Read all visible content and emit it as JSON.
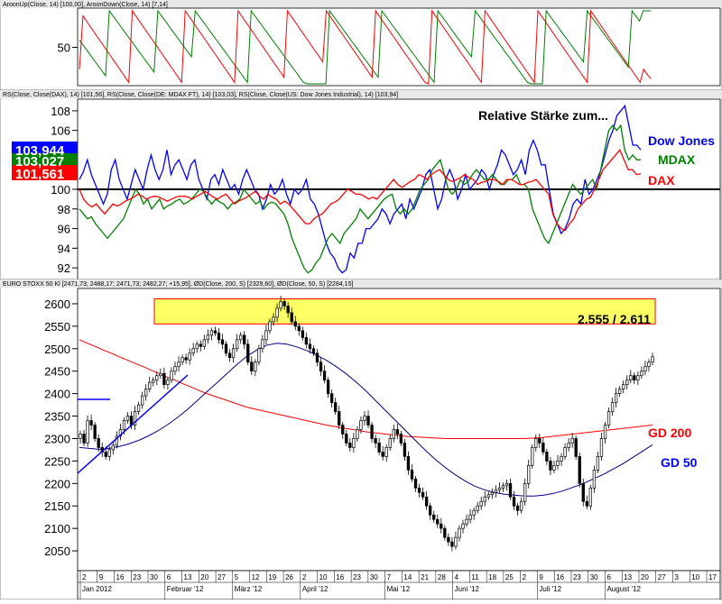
{
  "colors": {
    "up": "#008000",
    "down": "#ff0000",
    "dow": "#0000ff",
    "mdax": "#008000",
    "dax": "#ff0000",
    "gd200": "#ff0000",
    "gd50": "#00008b",
    "trend": "#0000ff",
    "zone_fill": "#ffff66",
    "zone_stroke": "#ff0000"
  },
  "chart_data": [
    {
      "type": "line",
      "header": "AroonUp(Close, 14) [100,00], AroonDown(Close, 14) [7,14]",
      "ylabels": [
        "50"
      ],
      "ylim": [
        0,
        100
      ],
      "series": [
        {
          "name": "AroonUp",
          "values": [
            60,
            53,
            46,
            39,
            32,
            25,
            18,
            11,
            100,
            93,
            86,
            79,
            72,
            65,
            58,
            51,
            44,
            37,
            30,
            23,
            16,
            100,
            93,
            86,
            79,
            72,
            65,
            58,
            51,
            44,
            37,
            100,
            93,
            86,
            79,
            72,
            65,
            58,
            51,
            44,
            37,
            30,
            23,
            16,
            9,
            2,
            100,
            93,
            86,
            79,
            72,
            65,
            58,
            51,
            44,
            37,
            30,
            23,
            16,
            9,
            2,
            0,
            0,
            0,
            0,
            0,
            0,
            100,
            93,
            86,
            79,
            72,
            65,
            58,
            51,
            44,
            37,
            30,
            23,
            16,
            9,
            100,
            93,
            86,
            79,
            72,
            65,
            58,
            51,
            44,
            37,
            30,
            23,
            16,
            9,
            2,
            100,
            93,
            86,
            79,
            72,
            65,
            58,
            51,
            44,
            37,
            100,
            93,
            86,
            79,
            72,
            65,
            58,
            51,
            44,
            37,
            30,
            23,
            16,
            9,
            2,
            0,
            0,
            0,
            0,
            100,
            93,
            86,
            79,
            72,
            65,
            58,
            51,
            44,
            37,
            30,
            100,
            93,
            86,
            79,
            72,
            65,
            58,
            51,
            44,
            37,
            30,
            23,
            100,
            93,
            86,
            100,
            100,
            100
          ]
        },
        {
          "name": "AroonDown",
          "values": [
            20,
            93,
            86,
            79,
            72,
            65,
            58,
            51,
            44,
            37,
            30,
            23,
            16,
            9,
            2,
            100,
            93,
            86,
            79,
            72,
            65,
            58,
            51,
            44,
            37,
            30,
            23,
            16,
            9,
            2,
            100,
            93,
            86,
            79,
            72,
            65,
            58,
            51,
            44,
            37,
            30,
            23,
            16,
            9,
            2,
            100,
            93,
            86,
            79,
            72,
            65,
            58,
            51,
            44,
            37,
            30,
            23,
            16,
            9,
            100,
            93,
            86,
            79,
            72,
            65,
            58,
            51,
            44,
            37,
            30,
            100,
            93,
            86,
            79,
            72,
            65,
            58,
            51,
            44,
            37,
            30,
            23,
            16,
            9,
            100,
            93,
            86,
            79,
            72,
            65,
            58,
            51,
            44,
            37,
            30,
            23,
            16,
            9,
            2,
            0,
            100,
            93,
            86,
            79,
            72,
            65,
            58,
            51,
            44,
            37,
            30,
            23,
            16,
            9,
            2,
            100,
            93,
            86,
            79,
            72,
            65,
            58,
            51,
            44,
            37,
            30,
            23,
            16,
            9,
            2,
            100,
            93,
            86,
            79,
            72,
            65,
            58,
            51,
            44,
            37,
            30,
            23,
            16,
            9,
            2,
            100,
            93,
            86,
            79,
            72,
            65,
            58,
            51,
            44,
            37,
            30,
            23,
            16,
            9,
            2,
            20,
            13,
            7
          ]
        }
      ]
    },
    {
      "type": "line",
      "header": "RS(Close, Close(DAX), 14) [101,56], RS(Close, Close(DE: MDAX       FT), 14) [103,03], RS(Close, Close(US: Dow Jones Industrial), 14) [103,94]",
      "title": "Relative Stärke zum...",
      "ylabels": [
        "108",
        "106",
        "104",
        "102",
        "100",
        "98",
        "96",
        "94",
        "92"
      ],
      "ylim": [
        91,
        109
      ],
      "reference": 100,
      "value_boxes": [
        "103,944",
        "103,027",
        "101,561"
      ],
      "series": [
        {
          "name": "Dow Jones",
          "color_key": "dow",
          "values": [
            101,
            101.8,
            103,
            101.5,
            100.5,
            99.5,
            98.5,
            99.5,
            102,
            103,
            101,
            100,
            99,
            100.5,
            102,
            101,
            100,
            102,
            103.5,
            102,
            101,
            102,
            104,
            101.5,
            102.5,
            103,
            102,
            101,
            102.5,
            103,
            101,
            100,
            99,
            101,
            101.5,
            100.5,
            102,
            101,
            100,
            100.5,
            99.5,
            101,
            102,
            101,
            100,
            99.5,
            98,
            99,
            100.5,
            99.5,
            100,
            101,
            99.5,
            98.5,
            100,
            99.5,
            100,
            101,
            99,
            98.5,
            97.5,
            96,
            94.5,
            93.5,
            93,
            92,
            91.5,
            91.8,
            93.5,
            93,
            94.5,
            94.5,
            96,
            96,
            96.5,
            97,
            98,
            97.5,
            96.5,
            97.5,
            98,
            98.5,
            97,
            99,
            98,
            99,
            100,
            101.5,
            102,
            100,
            98,
            99,
            101,
            102,
            101,
            99,
            100,
            101.5,
            100,
            100.5,
            101,
            102,
            101.5,
            100,
            101.5,
            102.5,
            104,
            103.5,
            102.5,
            101.5,
            102,
            103,
            101.5,
            104,
            105,
            104,
            102.5,
            102.5,
            100,
            97.5,
            96.5,
            95.5,
            96,
            97,
            98.5,
            99,
            98.5,
            101,
            99.5,
            100,
            101,
            102,
            103.5,
            105,
            106,
            107.5,
            108,
            108.5,
            106.5,
            104.5,
            104.5,
            104
          ]
        },
        {
          "name": "MDAX",
          "color_key": "mdax",
          "values": [
            98,
            97.5,
            97,
            97.2,
            96.5,
            96,
            95.5,
            95,
            95.5,
            96,
            96.5,
            97,
            98,
            99,
            100,
            99.5,
            98.5,
            99,
            98,
            98.5,
            99,
            98,
            98.3,
            98.5,
            98.8,
            99,
            98.5,
            98.7,
            99,
            99.5,
            100,
            99.8,
            99,
            98.5,
            99,
            98.7,
            98.5,
            98,
            98.5,
            98.7,
            99,
            100,
            99.5,
            99,
            98.5,
            98.8,
            98,
            98.5,
            98.7,
            98.5,
            98,
            97.5,
            96.5,
            95,
            94,
            93,
            92,
            91.5,
            91.8,
            92.5,
            93,
            94,
            95,
            95.5,
            95,
            94.5,
            95.5,
            96,
            96.5,
            97,
            98,
            97.5,
            97,
            97.5,
            98,
            98.5,
            99,
            99.3,
            99.5,
            98,
            97.5,
            98,
            97.5,
            98,
            99,
            100,
            100.5,
            101,
            102,
            102.5,
            103,
            101.5,
            100,
            99.5,
            100,
            101,
            100.5,
            100.8,
            101.5,
            102,
            101.5,
            101,
            101,
            101.5,
            101,
            100.5,
            100.5,
            101,
            101,
            101.5,
            100.5,
            100.5,
            100,
            98,
            97,
            96,
            95,
            94.5,
            95.5,
            96.5,
            97.5,
            98.5,
            99.5,
            100.5,
            100,
            99.5,
            100,
            100.5,
            101,
            100,
            102,
            104,
            106,
            106.5,
            106,
            106.5,
            104,
            103,
            103.5,
            103,
            103
          ]
        },
        {
          "name": "DAX",
          "color_key": "dax",
          "values": [
            100,
            99,
            98.5,
            98.2,
            98.5,
            98,
            97.5,
            98,
            98.5,
            98.3,
            98.5,
            98.8,
            99,
            99.2,
            99.5,
            99.3,
            99,
            99.2,
            99.3,
            99.2,
            99,
            98.8,
            99,
            99.2,
            99.3,
            99.3,
            99.2,
            99,
            99.3,
            99.5,
            99.8,
            99.5,
            99.2,
            99,
            99.3,
            99.5,
            99,
            98.5,
            98.8,
            99,
            99.2,
            99.5,
            99.8,
            99.3,
            99,
            99.5,
            99.2,
            99,
            98.5,
            98.8,
            98.5,
            98,
            97.5,
            97,
            96.5,
            96.5,
            97,
            97.3,
            97.5,
            98,
            98.5,
            98.7,
            99,
            99.5,
            100,
            99.8,
            99.5,
            99.5,
            99.3,
            99,
            99.2,
            99,
            99.5,
            100,
            100.5,
            101,
            100.5,
            100.2,
            100.5,
            100.8,
            101,
            101.5,
            101.3,
            101,
            101.5,
            101.8,
            102,
            101.5,
            101,
            100.8,
            101,
            101.2,
            101.5,
            101.2,
            101,
            100.5,
            100.7,
            100.8,
            101,
            101,
            100.8,
            100.5,
            101,
            101,
            100.8,
            100.5,
            100.5,
            100.7,
            100.8,
            101,
            100.5,
            100,
            99.5,
            97.5,
            96.5,
            96,
            95.8,
            96.5,
            97,
            98,
            98.5,
            99,
            99.2,
            100,
            101,
            102,
            102.5,
            103,
            103.5,
            104,
            103,
            102,
            102,
            101.5,
            101.6
          ]
        }
      ]
    },
    {
      "type": "candlestick",
      "header": "EURO STOXX 50     Kl [2471,73; 2488,17; 2471,73; 2482,27; +15,95], ØD(Close, 200, S) [2329,60], ØD(Close, 50, S) [2284,15]",
      "ylabels": [
        "2600",
        "2550",
        "2500",
        "2450",
        "2400",
        "2350",
        "2300",
        "2250",
        "2200",
        "2150",
        "2100",
        "2050"
      ],
      "ylim": [
        2010,
        2630
      ],
      "resistance_zone": {
        "from": 2555,
        "to": 2611,
        "label": "2.555 / 2.611"
      },
      "line_labels": {
        "gd200": "GD 200",
        "gd50": "GD 50"
      },
      "x_ticks": [
        "2",
        "9",
        "16",
        "23",
        "30",
        "6",
        "13",
        "20",
        "27",
        "5",
        "12",
        "19",
        "26",
        "2",
        "10",
        "16",
        "23",
        "30",
        "7",
        "14",
        "21",
        "28",
        "4",
        "11",
        "18",
        "25",
        "2",
        "9",
        "16",
        "23",
        "30",
        "6",
        "13",
        "20",
        "27",
        "3",
        "10",
        "17"
      ],
      "months": [
        "Jan 2012",
        "Februar '12",
        "März '12",
        "April '12",
        "Mai '12",
        "Juni '12",
        "Juli '12",
        "August '12"
      ],
      "close": [
        2310,
        2290,
        2340,
        2330,
        2300,
        2280,
        2270,
        2260,
        2275,
        2285,
        2305,
        2320,
        2340,
        2350,
        2330,
        2360,
        2375,
        2395,
        2410,
        2425,
        2430,
        2440,
        2445,
        2420,
        2430,
        2450,
        2460,
        2470,
        2480,
        2475,
        2490,
        2500,
        2510,
        2505,
        2520,
        2530,
        2540,
        2535,
        2520,
        2510,
        2490,
        2480,
        2500,
        2520,
        2530,
        2510,
        2470,
        2450,
        2470,
        2500,
        2520,
        2540,
        2560,
        2570,
        2590,
        2605,
        2595,
        2580,
        2560,
        2550,
        2540,
        2525,
        2510,
        2500,
        2490,
        2470,
        2450,
        2430,
        2400,
        2380,
        2360,
        2330,
        2310,
        2290,
        2280,
        2300,
        2320,
        2340,
        2350,
        2330,
        2300,
        2290,
        2270,
        2260,
        2280,
        2300,
        2320,
        2310,
        2290,
        2260,
        2230,
        2210,
        2190,
        2180,
        2170,
        2150,
        2130,
        2120,
        2110,
        2100,
        2080,
        2070,
        2060,
        2080,
        2100,
        2110,
        2120,
        2130,
        2140,
        2150,
        2160,
        2170,
        2175,
        2180,
        2185,
        2190,
        2195,
        2200,
        2170,
        2150,
        2140,
        2160,
        2200,
        2240,
        2280,
        2300,
        2290,
        2270,
        2250,
        2230,
        2240,
        2250,
        2260,
        2280,
        2290,
        2300,
        2260,
        2200,
        2160,
        2150,
        2190,
        2230,
        2260,
        2300,
        2330,
        2360,
        2380,
        2400,
        2410,
        2420,
        2430,
        2440,
        2430,
        2440,
        2450,
        2460,
        2470,
        2482
      ],
      "gd200": [
        2520,
        2512,
        2505,
        2497,
        2490,
        2482,
        2475,
        2467,
        2460,
        2452,
        2445,
        2437,
        2430,
        2422,
        2415,
        2407,
        2400,
        2394,
        2388,
        2382,
        2376,
        2370,
        2366,
        2362,
        2358,
        2354,
        2350,
        2346,
        2342,
        2338,
        2334,
        2330,
        2327,
        2324,
        2321,
        2318,
        2315,
        2313,
        2311,
        2309,
        2307,
        2305,
        2304,
        2303,
        2302,
        2301,
        2300,
        2300,
        2300,
        2300,
        2300,
        2300,
        2300,
        2300,
        2300,
        2300,
        2300,
        2301,
        2302,
        2304,
        2306,
        2308,
        2310,
        2312,
        2314,
        2316,
        2318,
        2320,
        2322,
        2324,
        2326,
        2328,
        2330
      ],
      "gd50": [
        2280,
        2278,
        2276,
        2278,
        2282,
        2288,
        2296,
        2306,
        2318,
        2332,
        2348,
        2366,
        2386,
        2406,
        2426,
        2446,
        2466,
        2484,
        2498,
        2508,
        2512,
        2510,
        2504,
        2496,
        2486,
        2474,
        2460,
        2444,
        2426,
        2406,
        2384,
        2362,
        2340,
        2318,
        2296,
        2274,
        2254,
        2236,
        2220,
        2206,
        2194,
        2186,
        2180,
        2176,
        2174,
        2172,
        2172,
        2174,
        2178,
        2184,
        2192,
        2200,
        2210,
        2220,
        2232,
        2244,
        2258,
        2272,
        2286
      ]
    }
  ]
}
